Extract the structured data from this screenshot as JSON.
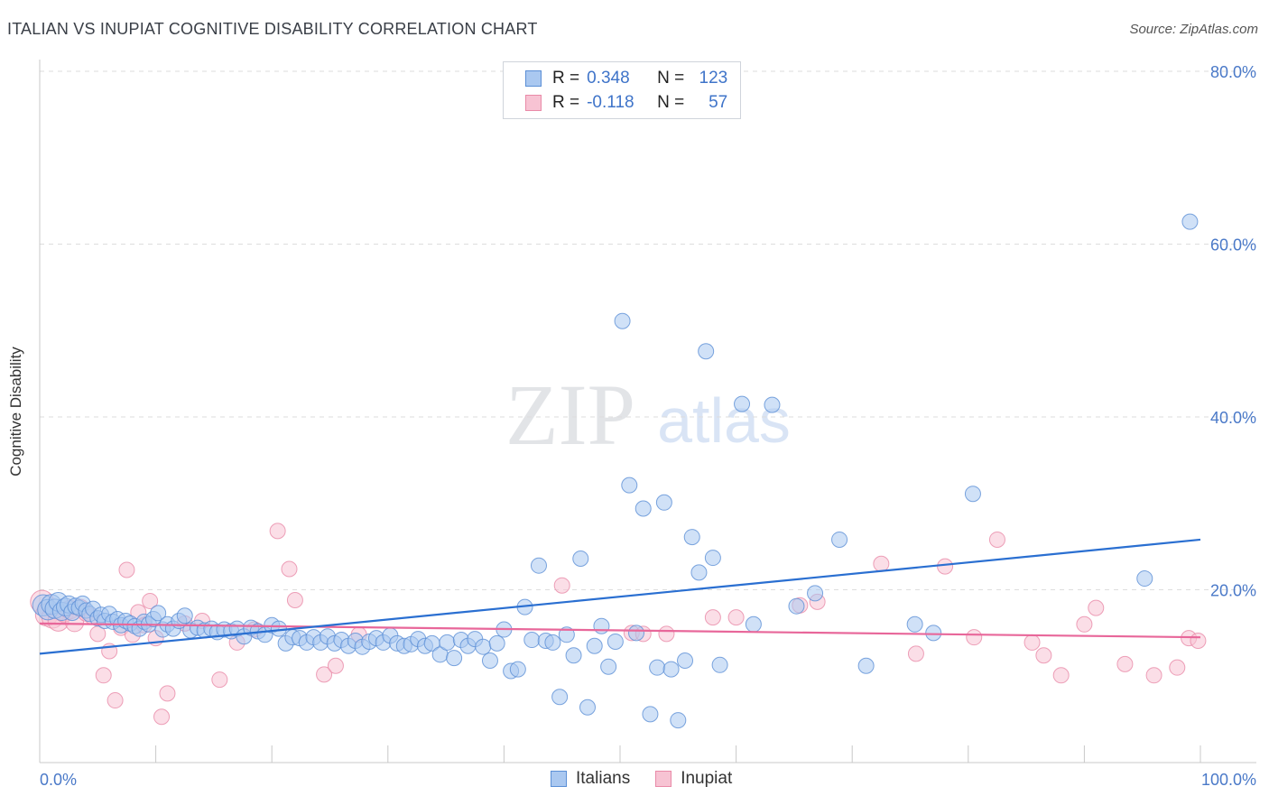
{
  "title": "ITALIAN VS INUPIAT COGNITIVE DISABILITY CORRELATION CHART",
  "source": "Source: ZipAtlas.com",
  "watermark": {
    "zip": "ZIP",
    "atlas": "atlas"
  },
  "colors": {
    "italian_fill": "#aac8f0",
    "italian_stroke": "#5b8fd6",
    "italian_line": "#2a6fd1",
    "inupiat_fill": "#f7c3d3",
    "inupiat_stroke": "#e98aa8",
    "inupiat_line": "#e8679a",
    "tick_text": "#4a79c8",
    "grid": "#dddddd"
  },
  "legend_top": {
    "italian": {
      "r_label": "R =",
      "r_value": "0.348",
      "n_label": "N =",
      "n_value": "123"
    },
    "inupiat": {
      "r_label": "R =",
      "r_value": "-0.118",
      "n_label": "N =",
      "n_value": "57"
    }
  },
  "legend_bottom": {
    "italian": "Italians",
    "inupiat": "Inupiat"
  },
  "chart_data": {
    "type": "scatter",
    "title": "ITALIAN VS INUPIAT COGNITIVE DISABILITY CORRELATION CHART",
    "xlabel": "",
    "ylabel": "Cognitive Disability",
    "xlim": [
      0,
      100
    ],
    "ylim": [
      0,
      80
    ],
    "x_tick_labels": [
      "0.0%",
      "100.0%"
    ],
    "y_ticks": [
      20,
      40,
      60,
      80
    ],
    "y_tick_labels": [
      "20.0%",
      "40.0%",
      "60.0%",
      "80.0%"
    ],
    "grid": "horizontal dashed",
    "legend_placement": "top-center",
    "series": [
      {
        "name": "Italians",
        "color": "#aac8f0",
        "trend": {
          "x": [
            0,
            100
          ],
          "y": [
            12.6,
            25.8
          ]
        },
        "points": [
          [
            0.3,
            18.2
          ],
          [
            0.7,
            17.7
          ],
          [
            1.0,
            18.3
          ],
          [
            1.3,
            17.8
          ],
          [
            1.6,
            18.6
          ],
          [
            1.9,
            17.5
          ],
          [
            2.2,
            18.0
          ],
          [
            2.5,
            18.3
          ],
          [
            2.8,
            17.4
          ],
          [
            3.1,
            18.1
          ],
          [
            3.4,
            17.9
          ],
          [
            3.7,
            18.4
          ],
          [
            4.0,
            17.6
          ],
          [
            4.3,
            17.2
          ],
          [
            4.6,
            17.8
          ],
          [
            5.0,
            16.7
          ],
          [
            5.3,
            17.1
          ],
          [
            5.6,
            16.4
          ],
          [
            6.0,
            17.2
          ],
          [
            6.3,
            16.3
          ],
          [
            6.7,
            16.6
          ],
          [
            7.0,
            15.9
          ],
          [
            7.4,
            16.4
          ],
          [
            7.8,
            16.1
          ],
          [
            8.2,
            15.8
          ],
          [
            8.6,
            15.5
          ],
          [
            9.0,
            16.3
          ],
          [
            9.4,
            16.0
          ],
          [
            9.8,
            16.6
          ],
          [
            10.2,
            17.3
          ],
          [
            10.6,
            15.4
          ],
          [
            11.0,
            16.0
          ],
          [
            11.5,
            15.5
          ],
          [
            12.0,
            16.4
          ],
          [
            12.5,
            17.0
          ],
          [
            13.0,
            15.3
          ],
          [
            13.6,
            15.6
          ],
          [
            14.2,
            15.3
          ],
          [
            14.8,
            15.5
          ],
          [
            15.3,
            15.1
          ],
          [
            15.9,
            15.4
          ],
          [
            16.5,
            15.2
          ],
          [
            17.0,
            15.5
          ],
          [
            17.6,
            14.6
          ],
          [
            18.2,
            15.6
          ],
          [
            18.8,
            15.2
          ],
          [
            19.4,
            14.8
          ],
          [
            20.0,
            15.9
          ],
          [
            20.6,
            15.5
          ],
          [
            21.2,
            13.8
          ],
          [
            21.8,
            14.5
          ],
          [
            22.4,
            14.4
          ],
          [
            23.0,
            13.9
          ],
          [
            23.6,
            14.5
          ],
          [
            24.2,
            13.9
          ],
          [
            24.8,
            14.6
          ],
          [
            25.4,
            13.8
          ],
          [
            26.0,
            14.2
          ],
          [
            26.6,
            13.5
          ],
          [
            27.2,
            14.1
          ],
          [
            27.8,
            13.4
          ],
          [
            28.4,
            14.0
          ],
          [
            29.0,
            14.4
          ],
          [
            29.6,
            13.9
          ],
          [
            30.2,
            14.7
          ],
          [
            30.8,
            13.8
          ],
          [
            31.4,
            13.5
          ],
          [
            32.0,
            13.7
          ],
          [
            32.6,
            14.3
          ],
          [
            33.2,
            13.5
          ],
          [
            33.8,
            13.8
          ],
          [
            34.5,
            12.5
          ],
          [
            35.1,
            13.9
          ],
          [
            35.7,
            12.1
          ],
          [
            36.3,
            14.2
          ],
          [
            36.9,
            13.5
          ],
          [
            37.5,
            14.3
          ],
          [
            38.2,
            13.4
          ],
          [
            38.8,
            11.8
          ],
          [
            39.4,
            13.8
          ],
          [
            40.0,
            15.4
          ],
          [
            40.6,
            10.6
          ],
          [
            41.2,
            10.8
          ],
          [
            41.8,
            18.0
          ],
          [
            42.4,
            14.2
          ],
          [
            43.0,
            22.8
          ],
          [
            43.6,
            14.1
          ],
          [
            44.2,
            13.9
          ],
          [
            44.8,
            7.6
          ],
          [
            45.4,
            14.8
          ],
          [
            46.0,
            12.4
          ],
          [
            46.6,
            23.6
          ],
          [
            47.2,
            6.4
          ],
          [
            47.8,
            13.5
          ],
          [
            48.4,
            15.8
          ],
          [
            49.0,
            11.1
          ],
          [
            49.6,
            14.0
          ],
          [
            50.2,
            51.1
          ],
          [
            50.8,
            32.1
          ],
          [
            51.4,
            15.0
          ],
          [
            52.0,
            29.4
          ],
          [
            52.6,
            5.6
          ],
          [
            53.2,
            11.0
          ],
          [
            53.8,
            30.1
          ],
          [
            54.4,
            10.8
          ],
          [
            55.0,
            4.9
          ],
          [
            55.6,
            11.8
          ],
          [
            56.2,
            26.1
          ],
          [
            56.8,
            22.0
          ],
          [
            57.4,
            47.6
          ],
          [
            58.0,
            23.7
          ],
          [
            58.6,
            11.3
          ],
          [
            60.5,
            41.5
          ],
          [
            61.5,
            16.0
          ],
          [
            63.1,
            41.4
          ],
          [
            65.2,
            18.1
          ],
          [
            66.8,
            19.6
          ],
          [
            68.9,
            25.8
          ],
          [
            71.2,
            11.2
          ],
          [
            75.4,
            16.0
          ],
          [
            77.0,
            15.0
          ],
          [
            80.4,
            31.1
          ],
          [
            95.2,
            21.3
          ],
          [
            99.1,
            62.6
          ]
        ]
      },
      {
        "name": "Inupiat",
        "color": "#f7c3d3",
        "trend": {
          "x": [
            0,
            100
          ],
          "y": [
            16.1,
            14.5
          ]
        },
        "points": [
          [
            0.2,
            18.6
          ],
          [
            0.6,
            17.1
          ],
          [
            1.1,
            16.8
          ],
          [
            1.6,
            16.4
          ],
          [
            2.1,
            17.4
          ],
          [
            2.6,
            17.7
          ],
          [
            3.0,
            16.2
          ],
          [
            3.5,
            17.9
          ],
          [
            4.0,
            17.3
          ],
          [
            4.5,
            16.9
          ],
          [
            5.0,
            14.9
          ],
          [
            5.5,
            10.1
          ],
          [
            6.0,
            12.9
          ],
          [
            6.5,
            7.2
          ],
          [
            7.0,
            15.6
          ],
          [
            7.5,
            22.3
          ],
          [
            8.0,
            14.8
          ],
          [
            8.5,
            17.4
          ],
          [
            9.0,
            15.9
          ],
          [
            9.5,
            18.7
          ],
          [
            10.0,
            14.4
          ],
          [
            10.5,
            5.3
          ],
          [
            11.0,
            8.0
          ],
          [
            12.5,
            16.1
          ],
          [
            14.0,
            16.4
          ],
          [
            15.5,
            9.6
          ],
          [
            17.0,
            13.9
          ],
          [
            18.5,
            15.4
          ],
          [
            20.5,
            26.8
          ],
          [
            21.5,
            22.4
          ],
          [
            22.0,
            18.8
          ],
          [
            24.5,
            10.2
          ],
          [
            25.5,
            11.2
          ],
          [
            27.5,
            14.8
          ],
          [
            45.0,
            20.5
          ],
          [
            51.0,
            15.0
          ],
          [
            52.0,
            14.9
          ],
          [
            54.0,
            14.9
          ],
          [
            58.0,
            16.8
          ],
          [
            60.0,
            16.8
          ],
          [
            65.5,
            18.2
          ],
          [
            67.0,
            18.6
          ],
          [
            72.5,
            23.0
          ],
          [
            75.5,
            12.6
          ],
          [
            78.0,
            22.7
          ],
          [
            80.5,
            14.5
          ],
          [
            82.5,
            25.8
          ],
          [
            85.5,
            13.9
          ],
          [
            86.5,
            12.4
          ],
          [
            88.0,
            10.1
          ],
          [
            90.0,
            16.0
          ],
          [
            91.0,
            17.9
          ],
          [
            93.5,
            11.4
          ],
          [
            96.0,
            10.1
          ],
          [
            98.0,
            11.0
          ],
          [
            99.0,
            14.4
          ],
          [
            99.8,
            14.1
          ]
        ]
      }
    ]
  }
}
